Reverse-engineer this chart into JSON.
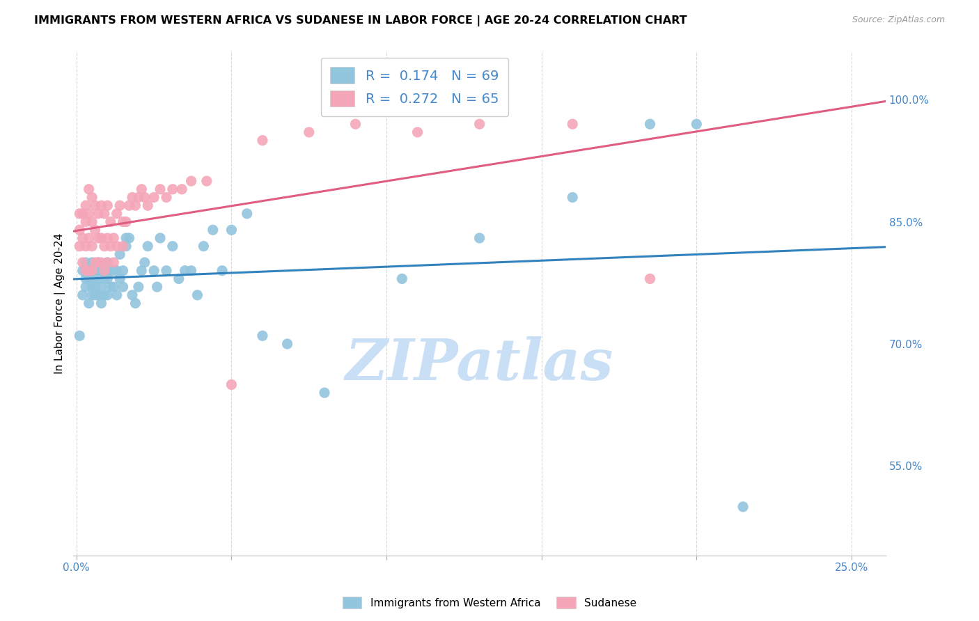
{
  "title": "IMMIGRANTS FROM WESTERN AFRICA VS SUDANESE IN LABOR FORCE | AGE 20-24 CORRELATION CHART",
  "source": "Source: ZipAtlas.com",
  "ylabel": "In Labor Force | Age 20-24",
  "y_tick_labels_right": [
    "100.0%",
    "85.0%",
    "70.0%",
    "55.0%"
  ],
  "y_tick_values": [
    1.0,
    0.85,
    0.7,
    0.55
  ],
  "xlim": [
    -0.001,
    0.261
  ],
  "ylim": [
    0.44,
    1.06
  ],
  "blue_color": "#92c5de",
  "pink_color": "#f4a6b8",
  "blue_line_color": "#3182bd",
  "pink_line_color": "#e05c80",
  "legend_blue_label": "R =  0.174   N = 69",
  "legend_pink_label": "R =  0.272   N = 65",
  "watermark": "ZIPatlas",
  "blue_scatter_x": [
    0.001,
    0.002,
    0.002,
    0.003,
    0.003,
    0.003,
    0.004,
    0.004,
    0.004,
    0.005,
    0.005,
    0.005,
    0.006,
    0.006,
    0.006,
    0.006,
    0.007,
    0.007,
    0.007,
    0.008,
    0.008,
    0.008,
    0.009,
    0.009,
    0.01,
    0.01,
    0.01,
    0.011,
    0.011,
    0.012,
    0.012,
    0.013,
    0.013,
    0.014,
    0.014,
    0.015,
    0.015,
    0.016,
    0.016,
    0.017,
    0.018,
    0.019,
    0.02,
    0.021,
    0.022,
    0.023,
    0.025,
    0.026,
    0.027,
    0.029,
    0.031,
    0.033,
    0.035,
    0.037,
    0.039,
    0.041,
    0.044,
    0.047,
    0.05,
    0.055,
    0.06,
    0.068,
    0.08,
    0.105,
    0.13,
    0.16,
    0.185,
    0.2,
    0.215
  ],
  "blue_scatter_y": [
    0.71,
    0.76,
    0.79,
    0.77,
    0.78,
    0.8,
    0.75,
    0.78,
    0.79,
    0.76,
    0.77,
    0.8,
    0.76,
    0.77,
    0.78,
    0.79,
    0.76,
    0.78,
    0.8,
    0.75,
    0.77,
    0.79,
    0.76,
    0.78,
    0.76,
    0.78,
    0.8,
    0.77,
    0.79,
    0.77,
    0.79,
    0.76,
    0.79,
    0.78,
    0.81,
    0.77,
    0.79,
    0.82,
    0.83,
    0.83,
    0.76,
    0.75,
    0.77,
    0.79,
    0.8,
    0.82,
    0.79,
    0.77,
    0.83,
    0.79,
    0.82,
    0.78,
    0.79,
    0.79,
    0.76,
    0.82,
    0.84,
    0.79,
    0.84,
    0.86,
    0.71,
    0.7,
    0.64,
    0.78,
    0.83,
    0.88,
    0.97,
    0.97,
    0.5
  ],
  "pink_scatter_x": [
    0.001,
    0.001,
    0.001,
    0.002,
    0.002,
    0.002,
    0.003,
    0.003,
    0.003,
    0.003,
    0.004,
    0.004,
    0.004,
    0.004,
    0.005,
    0.005,
    0.005,
    0.005,
    0.006,
    0.006,
    0.006,
    0.007,
    0.007,
    0.007,
    0.008,
    0.008,
    0.008,
    0.009,
    0.009,
    0.009,
    0.01,
    0.01,
    0.01,
    0.011,
    0.011,
    0.012,
    0.012,
    0.013,
    0.013,
    0.014,
    0.015,
    0.015,
    0.016,
    0.017,
    0.018,
    0.019,
    0.02,
    0.021,
    0.022,
    0.023,
    0.025,
    0.027,
    0.029,
    0.031,
    0.034,
    0.037,
    0.042,
    0.05,
    0.06,
    0.075,
    0.09,
    0.11,
    0.13,
    0.16,
    0.185
  ],
  "pink_scatter_y": [
    0.82,
    0.84,
    0.86,
    0.8,
    0.83,
    0.86,
    0.79,
    0.82,
    0.85,
    0.87,
    0.79,
    0.83,
    0.86,
    0.89,
    0.79,
    0.82,
    0.85,
    0.88,
    0.8,
    0.84,
    0.87,
    0.8,
    0.83,
    0.86,
    0.8,
    0.83,
    0.87,
    0.79,
    0.82,
    0.86,
    0.8,
    0.83,
    0.87,
    0.82,
    0.85,
    0.8,
    0.83,
    0.82,
    0.86,
    0.87,
    0.82,
    0.85,
    0.85,
    0.87,
    0.88,
    0.87,
    0.88,
    0.89,
    0.88,
    0.87,
    0.88,
    0.89,
    0.88,
    0.89,
    0.89,
    0.9,
    0.9,
    0.65,
    0.95,
    0.96,
    0.97,
    0.96,
    0.97,
    0.97,
    0.78
  ],
  "grid_color": "#d8d8d8",
  "title_fontsize": 11.5,
  "axis_label_color": "#4488cc",
  "watermark_color": "#c8dff5",
  "watermark_fontsize": 60
}
